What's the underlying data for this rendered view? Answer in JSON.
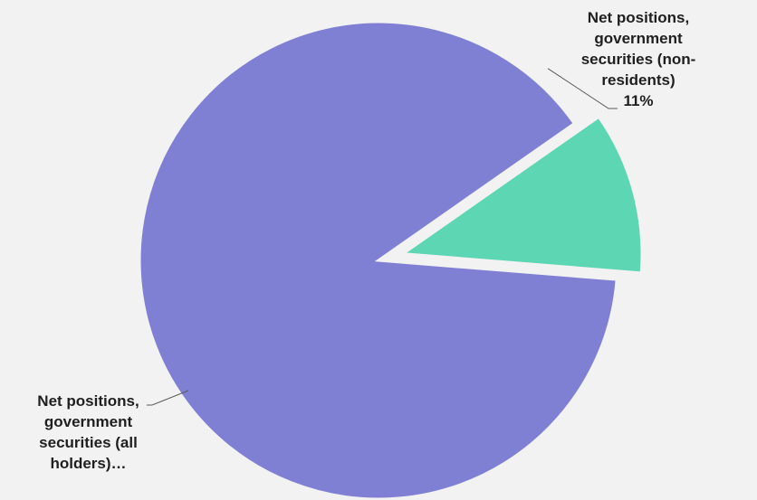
{
  "chart_data": {
    "type": "pie",
    "title": "",
    "slices": [
      {
        "name": "Net positions, government securities (non-residents)",
        "value": 11,
        "value_label": "11%",
        "label_lines": [
          "Net positions,",
          "government",
          "securities (non-",
          "residents)"
        ],
        "color": "#5dd6b3",
        "exploded": true
      },
      {
        "name": "Net positions, government securities (all holders)",
        "value": 89,
        "value_label": "",
        "label_lines": [
          "Net positions,",
          "government",
          "securities (all",
          "holders)…"
        ],
        "color": "#7f80d4",
        "exploded": false
      }
    ],
    "start_angle_deg": 55,
    "direction": "clockwise",
    "background": "#f2f2f2",
    "leader_line_color": "#595959"
  }
}
